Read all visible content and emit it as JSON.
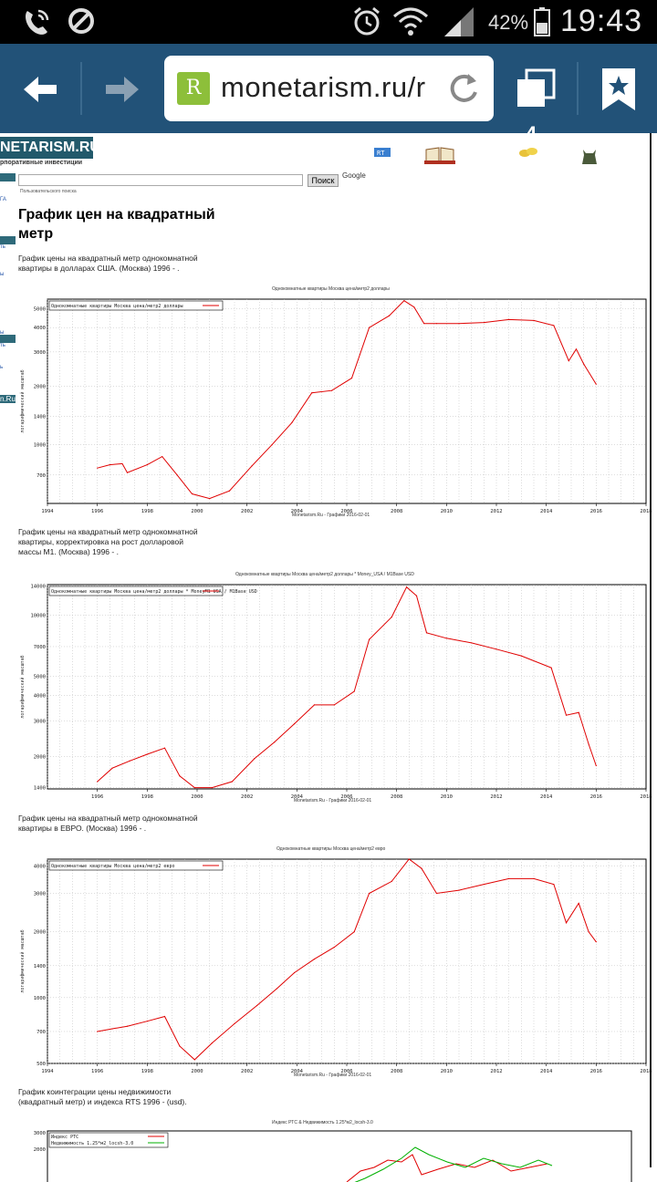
{
  "status_bar": {
    "battery_percent": "42%",
    "time": "19:43"
  },
  "browser": {
    "url": "monetarism.ru/r",
    "tab_count": "4",
    "favicon_letter": "R"
  },
  "site": {
    "logo": "NETARISM.RU",
    "logo_subtitle": "рпоративные инвестиции",
    "search_button": "Поиск",
    "search_provider": "Google",
    "search_hint": "Пользовательского поиска",
    "side_badge": "n.Ru"
  },
  "page_title": "График цен на квадратный метр",
  "sections": [
    {
      "caption": "График цены на квадратный метр однокомнатной квартиры в долларах США. (Москва) 1996 - ."
    },
    {
      "caption": "График цены на квадратный метр однокомнатной квартиры, корректировка на рост долларовой массы M1. (Москва) 1996 - ."
    },
    {
      "caption": "График цены на квадратный метр однокомнатной квартиры в ЕВРО. (Москва) 1996 - ."
    },
    {
      "caption": "График коинтеграции цены недвижимости (квадратный метр) и индекса RTS 1996 - (usd)."
    }
  ],
  "chart_data": [
    {
      "type": "line",
      "title": "Однокомнатные квартиры Москва цена/метр2 доллары",
      "legend": "Однокомнатные квартиры Москва цена/метр2 доллары",
      "ylabel": "логарифмический масштаб",
      "footer": "Monetarism.Ru - Графики 2016-02-01",
      "x_ticks": [
        "1994",
        "1996",
        "1998",
        "2000",
        "2002",
        "2004",
        "2006",
        "2008",
        "2010",
        "2012",
        "2014",
        "2016",
        "2018"
      ],
      "y_ticks": [
        "700",
        "1000",
        "1400",
        "2000",
        "3000",
        "4000",
        "5000"
      ],
      "xlim": [
        1994,
        2018
      ],
      "ylim": [
        500,
        5600
      ],
      "log_y": true,
      "series_color": "#e00000",
      "x": [
        1996.0,
        1996.5,
        1997.0,
        1997.2,
        1998.0,
        1998.6,
        1999.2,
        1999.8,
        2000.5,
        2001.3,
        2002.2,
        2003.0,
        2003.8,
        2004.6,
        2005.4,
        2006.2,
        2006.9,
        2007.7,
        2008.3,
        2008.7,
        2009.1,
        2009.6,
        2010.5,
        2011.5,
        2012.5,
        2013.5,
        2014.3,
        2014.9,
        2015.2,
        2015.5,
        2016.0
      ],
      "y": [
        760,
        790,
        800,
        720,
        790,
        870,
        700,
        560,
        530,
        580,
        780,
        1000,
        1300,
        1850,
        1900,
        2200,
        4000,
        4600,
        5500,
        5100,
        4200,
        4200,
        4200,
        4250,
        4400,
        4350,
        4100,
        2700,
        3100,
        2600,
        2050
      ]
    },
    {
      "type": "line",
      "title": "Однокомнатные квартиры Москва цена/метр2 доллары * Money_USA / M1Base USD",
      "legend": "Однокомнатные квартиры Москва цена/метр2 доллары * MoneyM1 USA / M1Base USD",
      "ylabel": "логарифмический масштаб",
      "footer": "Monetarism.Ru - Графики 2016-02-01",
      "x_ticks": [
        "1996",
        "1998",
        "2000",
        "2002",
        "2004",
        "2006",
        "2008",
        "2010",
        "2012",
        "2014",
        "2016",
        "2018"
      ],
      "y_ticks": [
        "1400",
        "2000",
        "3000",
        "4000",
        "5000",
        "7000",
        "10000",
        "14000"
      ],
      "xlim": [
        1994,
        2018
      ],
      "ylim": [
        1380,
        14200
      ],
      "log_y": true,
      "series_color": "#e00000",
      "x": [
        1996.0,
        1996.6,
        1997.3,
        1998.0,
        1998.7,
        1999.3,
        1999.9,
        2000.6,
        2001.4,
        2002.3,
        2003.1,
        2003.9,
        2004.7,
        2005.5,
        2006.3,
        2006.9,
        2007.8,
        2008.4,
        2008.8,
        2009.2,
        2010.0,
        2011.0,
        2012.0,
        2013.0,
        2014.2,
        2014.8,
        2015.3,
        2015.7,
        2016.0
      ],
      "y": [
        1500,
        1750,
        1900,
        2050,
        2200,
        1600,
        1400,
        1400,
        1500,
        1950,
        2350,
        2900,
        3600,
        3600,
        4200,
        7600,
        9800,
        13800,
        12500,
        8200,
        7700,
        7300,
        6800,
        6300,
        5500,
        3200,
        3300,
        2300,
        1800
      ]
    },
    {
      "type": "line",
      "title": "Однокомнатные квартиры Москва цена/метр2 евро",
      "legend": "Однокомнатные квартиры Москва цена/метр2 евро",
      "ylabel": "логарифмический масштаб",
      "footer": "Monetarism.Ru - Графики 2016-02-01",
      "x_ticks": [
        "1994",
        "1996",
        "1998",
        "2000",
        "2002",
        "2004",
        "2006",
        "2008",
        "2010",
        "2012",
        "2014",
        "2016",
        "2018"
      ],
      "y_ticks": [
        "500",
        "700",
        "1000",
        "1400",
        "2000",
        "3000",
        "4000"
      ],
      "xlim": [
        1994,
        2018
      ],
      "ylim": [
        500,
        4300
      ],
      "log_y": true,
      "series_color": "#e00000",
      "x": [
        1996.0,
        1996.6,
        1997.2,
        1998.0,
        1998.7,
        1999.3,
        1999.9,
        2000.6,
        2001.5,
        2002.4,
        2003.2,
        2003.9,
        2004.7,
        2005.5,
        2006.3,
        2006.9,
        2007.8,
        2008.5,
        2009.0,
        2009.6,
        2010.5,
        2011.5,
        2012.5,
        2013.5,
        2014.3,
        2014.8,
        2015.3,
        2015.7,
        2016.0
      ],
      "y": [
        700,
        720,
        740,
        780,
        820,
        600,
        520,
        620,
        760,
        920,
        1100,
        1300,
        1500,
        1700,
        2000,
        3000,
        3400,
        4300,
        3900,
        3000,
        3100,
        3300,
        3500,
        3500,
        3300,
        2200,
        2700,
        2000,
        1800
      ]
    },
    {
      "type": "line",
      "title": "Индекс РТС & Недвижимость 1.25*м2_locsh-3.0",
      "legend_items": [
        "Индекс РТС",
        "Недвижимость 1.25*м2_locsh-3.0"
      ],
      "y_ticks": [
        "3000",
        "2000"
      ],
      "series_colors": [
        "#e00000",
        "#00b000"
      ]
    }
  ]
}
